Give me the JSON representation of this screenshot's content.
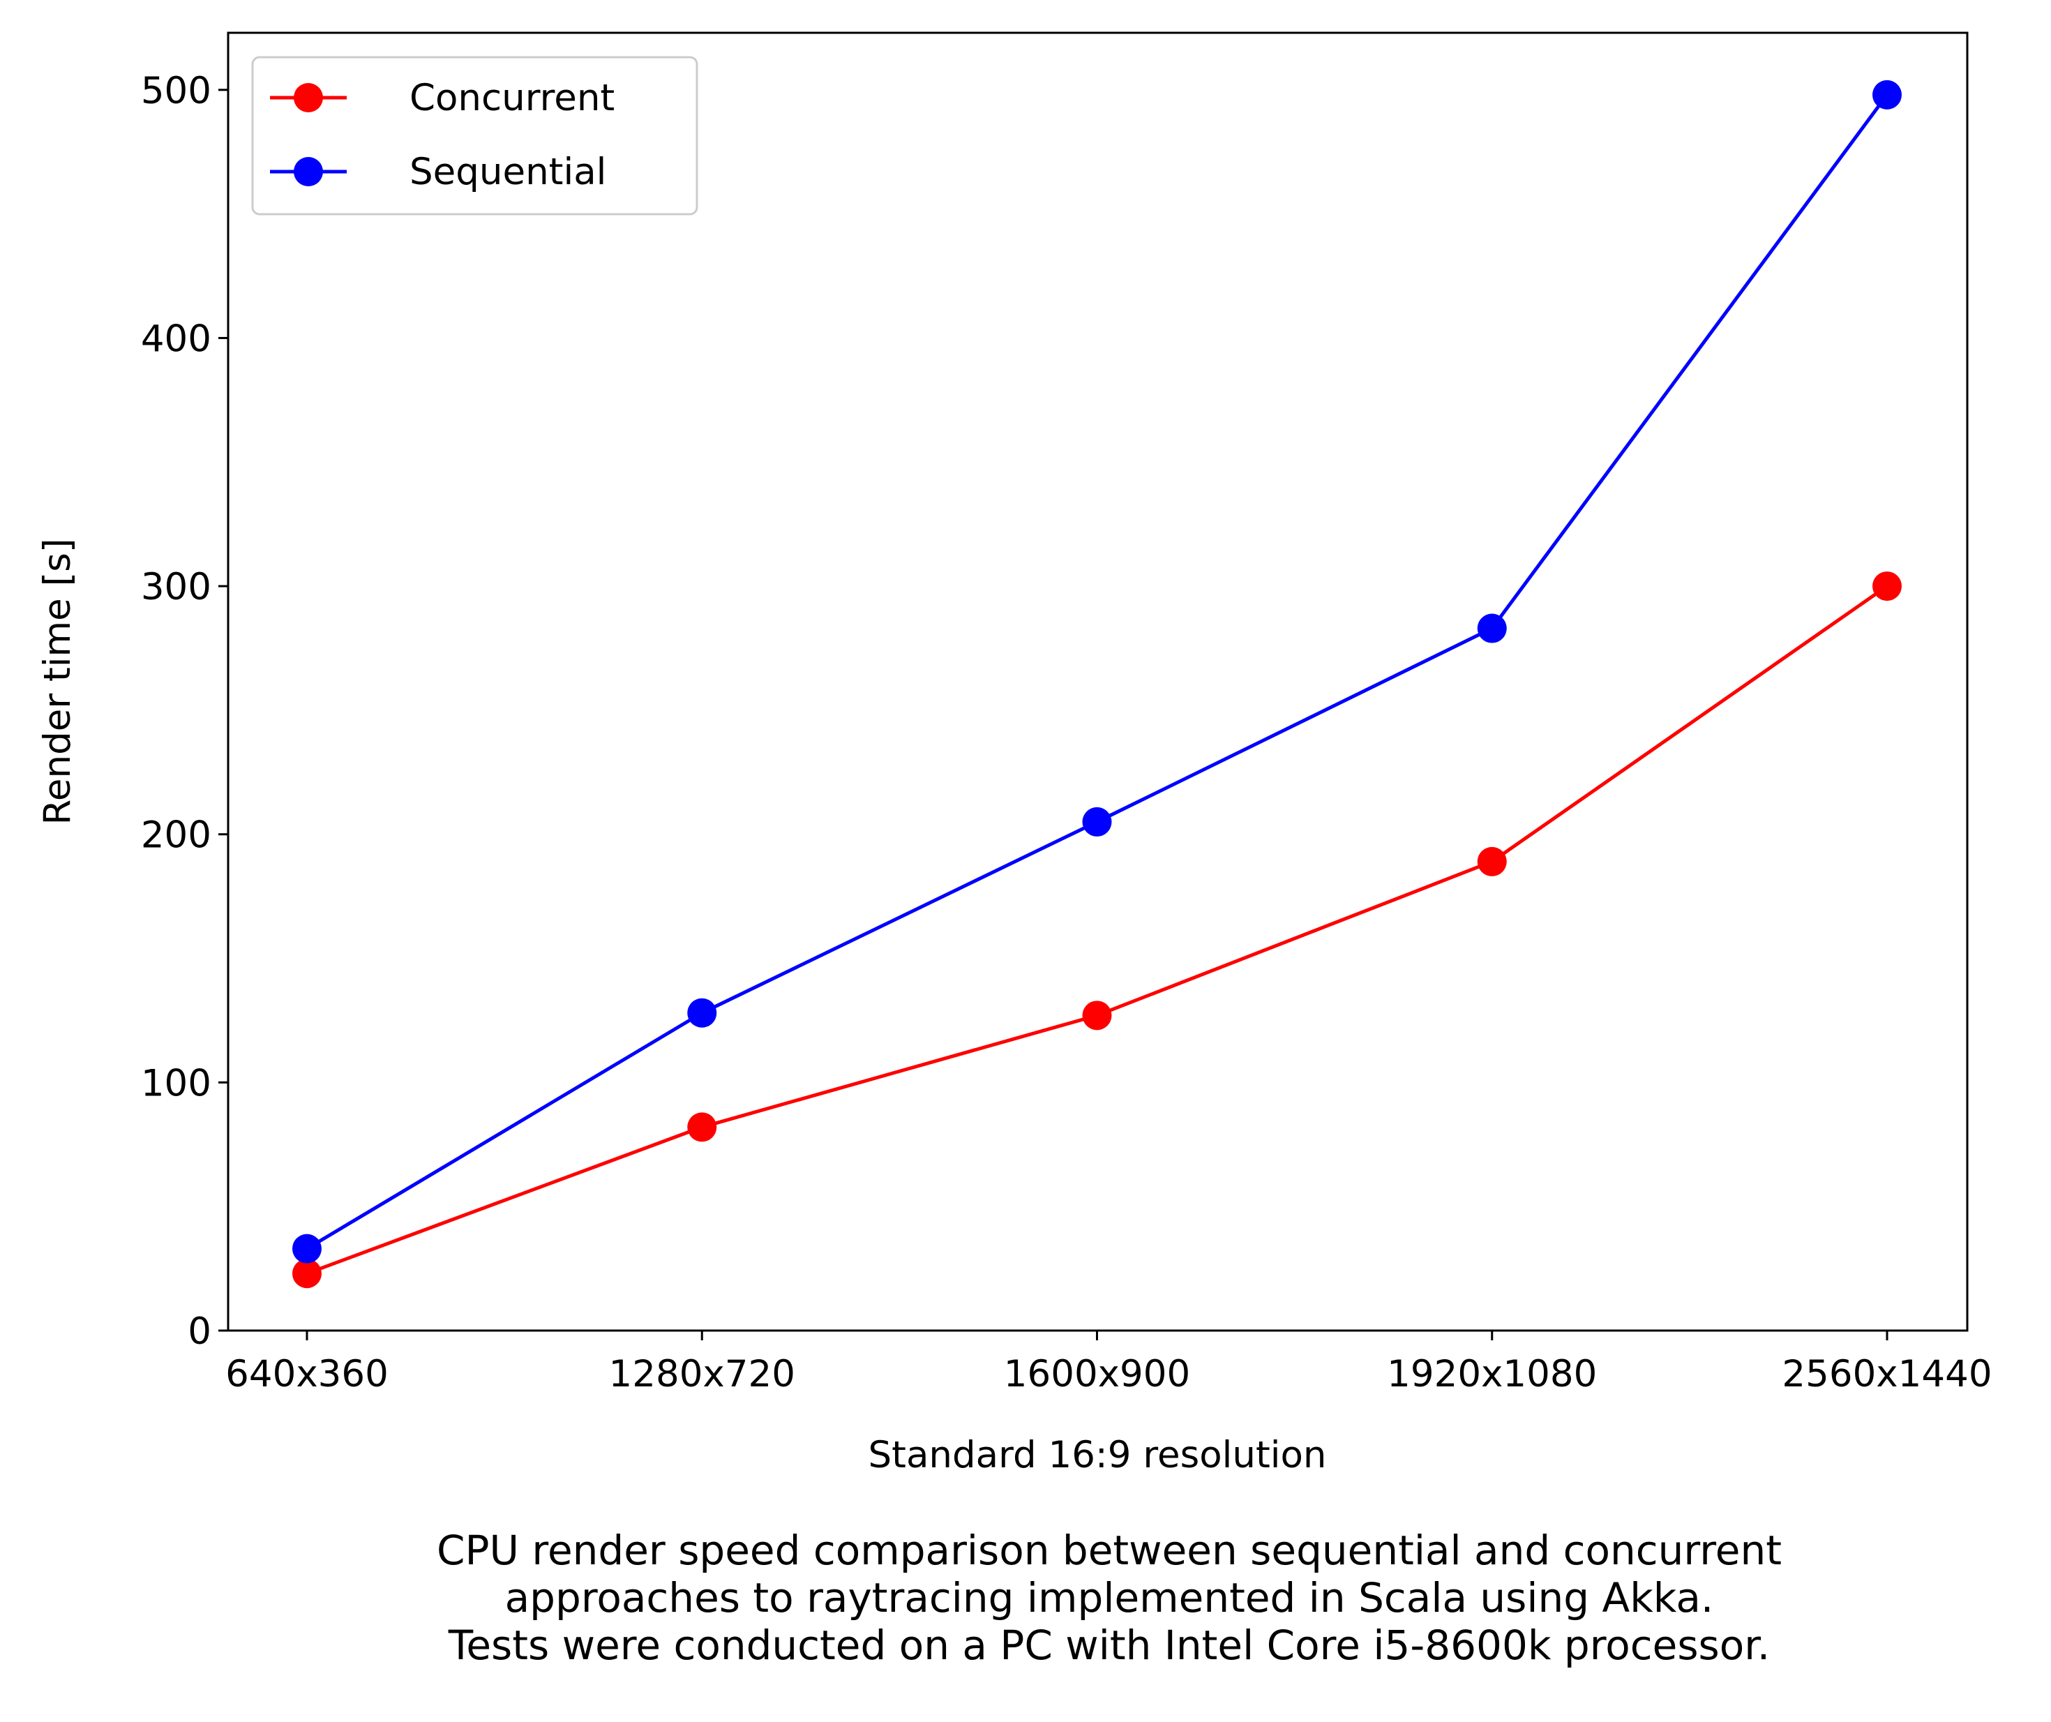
{
  "chart_data": {
    "type": "line",
    "categories": [
      "640x360",
      "1280x720",
      "1600x900",
      "1920x1080",
      "2560x1440"
    ],
    "series": [
      {
        "name": "Concurrent",
        "color": "#ff0000",
        "values": [
          23,
          82,
          127,
          189,
          300
        ]
      },
      {
        "name": "Sequential",
        "color": "#0000ff",
        "values": [
          33,
          128,
          205,
          283,
          498
        ]
      }
    ],
    "xlabel": "Standard 16:9 resolution",
    "ylabel": "Render time [s]",
    "ylim": [
      0,
      523
    ],
    "yticks": [
      0,
      100,
      200,
      300,
      400,
      500
    ],
    "grid": false,
    "legend_position": "upper-left",
    "marker": "circle"
  },
  "caption": "CPU render speed comparison between sequential and concurrent\napproaches to raytracing implemented in Scala using Akka.\nTests were conducted on a PC with Intel Core i5-8600k processor."
}
